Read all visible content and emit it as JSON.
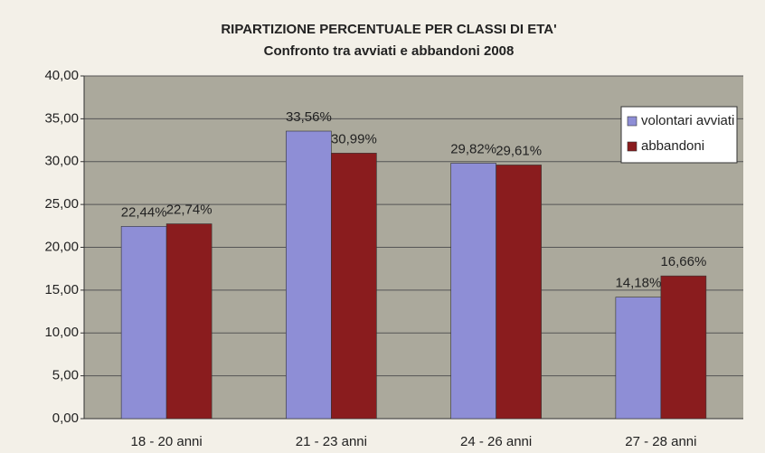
{
  "chart_data": {
    "type": "bar",
    "title": "RIPARTIZIONE PERCENTUALE PER CLASSI DI ETA'",
    "subtitle": "Confronto tra avviati e abbandoni 2008",
    "categories": [
      "18 - 20 anni",
      "21 - 23 anni",
      "24 - 26 anni",
      "27 - 28 anni"
    ],
    "series": [
      {
        "name": "volontari avviati",
        "color": "#8e8ed6",
        "values": [
          22.44,
          33.56,
          29.82,
          14.18
        ],
        "value_labels": [
          "22,44%",
          "33,56%",
          "29,82%",
          "14,18%"
        ]
      },
      {
        "name": "abbandoni",
        "color": "#8a1c1e",
        "values": [
          22.74,
          30.99,
          29.61,
          16.66
        ],
        "value_labels": [
          "22,74%",
          "30,99%",
          "29,61%",
          "16,66%"
        ]
      }
    ],
    "ylim": [
      0,
      40
    ],
    "yticks": [
      {
        "value": 0,
        "label": "0,00"
      },
      {
        "value": 5,
        "label": "5,00"
      },
      {
        "value": 10,
        "label": "10,00"
      },
      {
        "value": 15,
        "label": "15,00"
      },
      {
        "value": 20,
        "label": "20,00"
      },
      {
        "value": 25,
        "label": "25,00"
      },
      {
        "value": 30,
        "label": "30,00"
      },
      {
        "value": 35,
        "label": "35,00"
      },
      {
        "value": 40,
        "label": "40,00"
      }
    ],
    "grid": true,
    "legend": "upper right"
  }
}
